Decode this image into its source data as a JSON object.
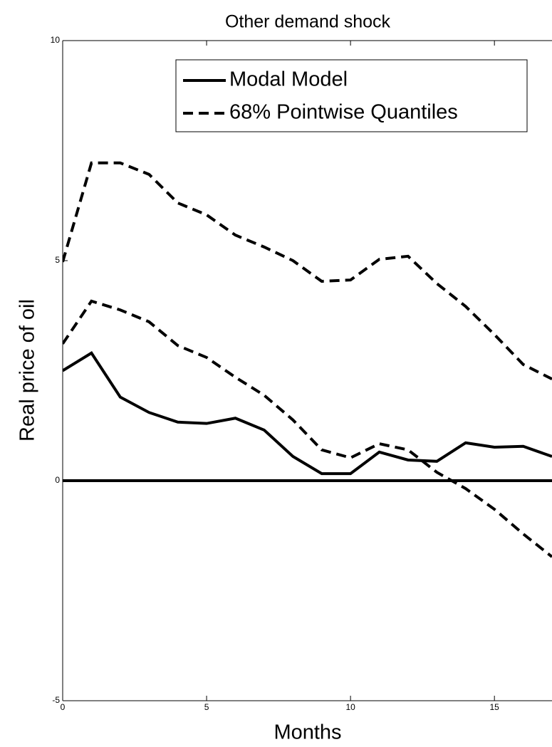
{
  "chart_data": {
    "type": "line",
    "title": "Other demand shock",
    "xlabel": "Months",
    "ylabel": "Real price of oil",
    "x": [
      0,
      1,
      2,
      3,
      4,
      5,
      6,
      7,
      8,
      9,
      10,
      11,
      12,
      13,
      14,
      15,
      16,
      17
    ],
    "series": [
      {
        "name": "Modal Model",
        "color": "#000000",
        "style": "solid",
        "values": [
          2.5,
          2.9,
          1.9,
          1.55,
          1.33,
          1.3,
          1.42,
          1.15,
          0.55,
          0.16,
          0.16,
          0.65,
          0.47,
          0.44,
          0.86,
          0.76,
          0.78,
          0.55
        ]
      },
      {
        "name": "68% Pointwise Quantiles",
        "color": "#000000",
        "style": "dashed",
        "values": [
          4.97,
          7.22,
          7.22,
          6.96,
          6.31,
          6.04,
          5.58,
          5.31,
          5.0,
          4.53,
          4.56,
          5.03,
          5.1,
          4.48,
          3.96,
          3.32,
          2.64,
          2.31
        ]
      },
      {
        "color": "#000000",
        "style": "dashed",
        "values": [
          3.11,
          4.08,
          3.88,
          3.61,
          3.07,
          2.8,
          2.35,
          1.94,
          1.38,
          0.7,
          0.52,
          0.84,
          0.7,
          0.19,
          -0.18,
          -0.65,
          -1.21,
          -1.73
        ]
      }
    ],
    "hline": 0,
    "xlim": [
      0,
      17
    ],
    "xticks": [
      0,
      5,
      10,
      15
    ],
    "ylim": [
      -5,
      10
    ],
    "yticks": [
      -5,
      0,
      5,
      10
    ],
    "legend": "top-right"
  }
}
